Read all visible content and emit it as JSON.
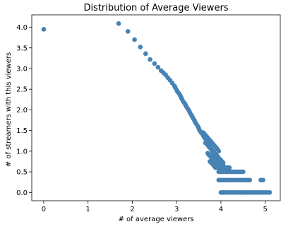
{
  "chart_data": {
    "type": "scatter",
    "title": "Distribution of Average Viewers",
    "xlabel": "# of average viewers",
    "ylabel": "# of streamers with this viewers",
    "xlim": [
      -0.27,
      5.34
    ],
    "ylim": [
      -0.2,
      4.3
    ],
    "x_ticks": [
      0,
      1,
      2,
      3,
      4,
      5
    ],
    "y_ticks": [
      0.0,
      0.5,
      1.0,
      1.5,
      2.0,
      2.5,
      3.0,
      3.5,
      4.0
    ],
    "grid": false,
    "legend": "none",
    "marker_color": "#4682b4",
    "series": [
      {
        "x": [
          0.0,
          1.69,
          1.9,
          2.05,
          2.18,
          2.3,
          2.4,
          2.5,
          2.58,
          2.65,
          2.7,
          2.75,
          2.8,
          2.85,
          2.9,
          2.95,
          2.97,
          3.0,
          3.02,
          3.05,
          3.08,
          3.1,
          3.12,
          3.15,
          3.18,
          3.2,
          3.22,
          3.25,
          3.28,
          3.3,
          3.33,
          3.35,
          3.37,
          3.4,
          3.42,
          3.45,
          3.48,
          3.5,
          3.52,
          3.55,
          3.58,
          3.6,
          3.62,
          3.65,
          3.68,
          3.7,
          3.72,
          3.75,
          3.78,
          3.8,
          3.82,
          3.85,
          3.88,
          3.9,
          3.92,
          3.95,
          4.0,
          4.05,
          4.1,
          4.15,
          3.6,
          3.62,
          3.64,
          3.66,
          3.68,
          3.7,
          3.72,
          3.74,
          3.76,
          3.78,
          3.8,
          3.82,
          3.84,
          3.86,
          3.88,
          3.9,
          3.92,
          3.95,
          3.65,
          3.68,
          3.7,
          3.72,
          3.74,
          3.76,
          3.78,
          3.8,
          3.82,
          3.84,
          3.86,
          3.88,
          3.9,
          3.92,
          3.94,
          3.96,
          3.98,
          4.0,
          4.02,
          4.05,
          3.7,
          3.72,
          3.74,
          3.76,
          3.78,
          3.8,
          3.82,
          3.84,
          3.86,
          3.88,
          3.9,
          3.92,
          3.94,
          3.96,
          3.98,
          4.0,
          4.03,
          4.06,
          4.09,
          4.12,
          3.75,
          3.78,
          3.8,
          3.82,
          3.84,
          3.86,
          3.88,
          3.9,
          3.93,
          3.96,
          3.99,
          4.02,
          4.05,
          4.08,
          4.1,
          4.13,
          4.16,
          4.19,
          3.95,
          4.0,
          4.05,
          4.1,
          4.15,
          4.2,
          4.25,
          4.3,
          4.35,
          4.4,
          4.45,
          4.5,
          3.95,
          4.0,
          4.05,
          4.1,
          4.15,
          4.2,
          4.25,
          4.3,
          4.35,
          4.4,
          4.45,
          4.5,
          4.55,
          4.6,
          4.65,
          4.9,
          4.95,
          4.0,
          4.05,
          4.1,
          4.15,
          4.2,
          4.25,
          4.3,
          4.35,
          4.4,
          4.45,
          4.5,
          4.55,
          4.6,
          4.65,
          4.7,
          4.75,
          4.8,
          4.85,
          4.9,
          4.95,
          5.0,
          5.05,
          5.1
        ],
        "y": [
          3.95,
          4.09,
          3.9,
          3.7,
          3.52,
          3.36,
          3.22,
          3.12,
          3.03,
          2.95,
          2.9,
          2.85,
          2.78,
          2.72,
          2.65,
          2.58,
          2.54,
          2.48,
          2.44,
          2.4,
          2.35,
          2.3,
          2.26,
          2.2,
          2.16,
          2.12,
          2.08,
          2.03,
          1.98,
          1.93,
          1.88,
          1.84,
          1.8,
          1.75,
          1.7,
          1.65,
          1.6,
          1.55,
          1.5,
          1.45,
          1.42,
          1.38,
          1.34,
          1.3,
          1.25,
          1.2,
          1.15,
          1.1,
          1.05,
          1.0,
          0.95,
          0.9,
          0.86,
          0.82,
          0.78,
          0.74,
          0.7,
          0.65,
          0.6,
          0.55,
          1.45,
          1.42,
          1.4,
          1.37,
          1.35,
          1.32,
          1.3,
          1.27,
          1.25,
          1.22,
          1.2,
          1.17,
          1.15,
          1.12,
          1.1,
          1.07,
          1.05,
          1.0,
          1.2,
          1.18,
          1.15,
          1.12,
          1.1,
          1.07,
          1.05,
          1.02,
          1.0,
          0.98,
          0.95,
          0.92,
          0.9,
          0.88,
          0.85,
          0.82,
          0.8,
          0.78,
          0.75,
          0.72,
          0.95,
          0.92,
          0.9,
          0.88,
          0.85,
          0.82,
          0.8,
          0.78,
          0.75,
          0.72,
          0.7,
          0.68,
          0.65,
          0.62,
          0.6,
          0.6,
          0.6,
          0.6,
          0.6,
          0.6,
          0.75,
          0.72,
          0.7,
          0.68,
          0.65,
          0.62,
          0.6,
          0.6,
          0.6,
          0.6,
          0.6,
          0.6,
          0.6,
          0.6,
          0.6,
          0.6,
          0.6,
          0.6,
          0.5,
          0.5,
          0.5,
          0.5,
          0.5,
          0.5,
          0.5,
          0.5,
          0.5,
          0.5,
          0.5,
          0.5,
          0.3,
          0.3,
          0.3,
          0.3,
          0.3,
          0.3,
          0.3,
          0.3,
          0.3,
          0.3,
          0.3,
          0.3,
          0.3,
          0.3,
          0.3,
          0.3,
          0.3,
          0.0,
          0.0,
          0.0,
          0.0,
          0.0,
          0.0,
          0.0,
          0.0,
          0.0,
          0.0,
          0.0,
          0.0,
          0.0,
          0.0,
          0.0,
          0.0,
          0.0,
          0.0,
          0.0,
          0.0,
          0.0,
          0.0,
          0.0
        ]
      }
    ]
  }
}
